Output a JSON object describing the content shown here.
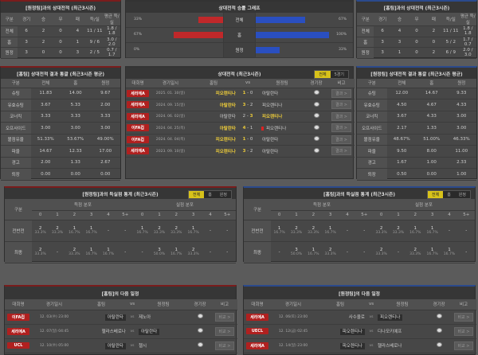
{
  "h2h_home": {
    "title": "[원정팀]과의 상대전적 (최근3시즌)",
    "cols": [
      "구분",
      "경기",
      "승",
      "무",
      "패",
      "득/실",
      "평균 득/실"
    ],
    "rows": [
      [
        "전체",
        "6",
        "2",
        "0",
        "4",
        "11 / 11",
        "1.8 / 1.8"
      ],
      [
        "홈",
        "3",
        "2",
        "0",
        "1",
        "9 / 6",
        "3.0 / 2.0"
      ],
      [
        "원정",
        "3",
        "0",
        "0",
        "3",
        "2 / 5",
        "0.7 / 1.7"
      ]
    ]
  },
  "h2h_away": {
    "title": "[홈팀]과의 상대전적 (최근3시즌)",
    "cols": [
      "구분",
      "경기",
      "승",
      "무",
      "패",
      "득/실",
      "평균 득/실"
    ],
    "rows": [
      [
        "전체",
        "6",
        "4",
        "0",
        "2",
        "11 / 11",
        "1.8 / 1.8"
      ],
      [
        "홈",
        "3",
        "3",
        "0",
        "0",
        "5 / 2",
        "1.7 / 0.7"
      ],
      [
        "원정",
        "3",
        "1",
        "0",
        "2",
        "6 / 9",
        "2.0 / 3.0"
      ]
    ]
  },
  "graph": {
    "title": "상대전적 승률 그래프",
    "colors": {
      "home": "#c0282a",
      "away": "#2a4fc0"
    },
    "rows": [
      {
        "label": "전체",
        "home": "33%",
        "home_val": 33,
        "away": "67%",
        "away_val": 67
      },
      {
        "label": "홈",
        "home": "67%",
        "home_val": 67,
        "away": "100%",
        "away_val": 100
      },
      {
        "label": "원정",
        "home": "0%",
        "home_val": 0,
        "away": "33%",
        "away_val": 33
      }
    ]
  },
  "avg_home": {
    "title": "[홈팀] 상대전적 결과 통괄 (최근3시즌 평균)",
    "cols": [
      "구분",
      "전체",
      "홈",
      "원정"
    ],
    "rows": [
      [
        "슈팅",
        "11.83",
        "14.00",
        "9.67"
      ],
      [
        "유효슈팅",
        "3.67",
        "5.33",
        "2.00"
      ],
      [
        "코너킥",
        "3.33",
        "3.33",
        "3.33"
      ],
      [
        "오프사이드",
        "3.00",
        "3.00",
        "3.00"
      ],
      [
        "볼점유율",
        "51.33%",
        "53.67%",
        "49.00%"
      ],
      [
        "파울",
        "14.67",
        "12.33",
        "17.00"
      ],
      [
        "경고",
        "2.00",
        "1.33",
        "2.67"
      ],
      [
        "퇴장",
        "0.00",
        "0.00",
        "0.00"
      ]
    ]
  },
  "avg_away": {
    "title": "[원정팀] 상대전적 결과 통괄 (최근3시즌 평균)",
    "cols": [
      "구분",
      "전체",
      "홈",
      "원정"
    ],
    "rows": [
      [
        "슈팅",
        "12.00",
        "14.67",
        "9.33"
      ],
      [
        "유효슈팅",
        "4.50",
        "4.67",
        "4.33"
      ],
      [
        "코너킥",
        "3.67",
        "4.33",
        "3.00"
      ],
      [
        "오프사이드",
        "2.17",
        "1.33",
        "3.00"
      ],
      [
        "볼점유율",
        "48.67%",
        "51.00%",
        "46.33%"
      ],
      [
        "파울",
        "9.50",
        "8.00",
        "11.00"
      ],
      [
        "경고",
        "1.67",
        "1.00",
        "2.33"
      ],
      [
        "퇴장",
        "0.50",
        "0.00",
        "1.00"
      ]
    ]
  },
  "matches": {
    "title": "상대전적 (최근3시즌)",
    "tabs": [
      "전체",
      "5경기"
    ],
    "cols": [
      "대회명",
      "경기일시",
      "홈팀",
      "vs",
      "원정팀",
      "경기장",
      "비고"
    ],
    "rows": [
      {
        "league": "세리에A",
        "date": "2025. 01. 30(일)",
        "home": "피오렌티나",
        "hs": "1",
        "as": "0",
        "away": "아탈란타",
        "winner": "home",
        "red": false,
        "btn": "결과 >"
      },
      {
        "league": "세리에A",
        "date": "2024. 09. 15(일)",
        "home": "아탈란타",
        "hs": "3",
        "as": "2",
        "away": "피오렌티나",
        "winner": "home",
        "red": false,
        "btn": "결과 >"
      },
      {
        "league": "세리에A",
        "date": "2024. 06. 02(일)",
        "home": "아탈란타",
        "hs": "2",
        "as": "3",
        "away": "피오렌티나",
        "winner": "away",
        "red": false,
        "btn": "결과 >"
      },
      {
        "league": "이FA컵",
        "date": "2024. 04. 25(목)",
        "home": "아탈란타",
        "hs": "4",
        "as": "1",
        "away": "피오렌티나",
        "winner": "home",
        "red": true,
        "btn": "결과 >"
      },
      {
        "league": "이FA컵",
        "date": "2024. 04. 04(목)",
        "home": "피오렌티나",
        "hs": "1",
        "as": "0",
        "away": "아탈란타",
        "winner": "home",
        "red": false,
        "btn": "결과 >"
      },
      {
        "league": "세리에A",
        "date": "2023. 09. 10(일)",
        "home": "피오렌티나",
        "hs": "3",
        "as": "2",
        "away": "아탈란타",
        "winner": "home",
        "red": false,
        "btn": "결과 >"
      }
    ]
  },
  "goals_home": {
    "title": "[원정팀]과의 득실점 통계 (최근3시즌)",
    "tabs": [
      "전체",
      "홈",
      "원정"
    ],
    "label_col": "구분",
    "scored": "득점 분포",
    "conceded": "실점 분포",
    "buckets": [
      "0",
      "1",
      "2",
      "3",
      "4",
      "5+"
    ],
    "rows": [
      {
        "label": "전반전",
        "cells": [
          [
            "2",
            "33.3%"
          ],
          [
            "2",
            "33.3%"
          ],
          [
            "1",
            "16.7%"
          ],
          [
            "1",
            "16.7%"
          ],
          [
            "-",
            ""
          ],
          [
            "-",
            ""
          ],
          [
            "1",
            "16.7%"
          ],
          [
            "2",
            "33.3%"
          ],
          [
            "2",
            "33.3%"
          ],
          [
            "1",
            "16.7%"
          ],
          [
            "-",
            ""
          ],
          [
            "-",
            ""
          ]
        ]
      },
      {
        "label": "최종",
        "cells": [
          [
            "2",
            "33.3%"
          ],
          [
            "-",
            ""
          ],
          [
            "2",
            "33.3%"
          ],
          [
            "1",
            "16.7%"
          ],
          [
            "1",
            "16.7%"
          ],
          [
            "-",
            ""
          ],
          [
            "-",
            ""
          ],
          [
            "3",
            "50.0%"
          ],
          [
            "1",
            "16.7%"
          ],
          [
            "2",
            "33.3%"
          ],
          [
            "-",
            ""
          ],
          [
            "-",
            ""
          ]
        ]
      }
    ]
  },
  "goals_away": {
    "title": "[홈팀]과의 득실점 통계 (최근3시즌)",
    "tabs": [
      "전체",
      "홈",
      "원정"
    ],
    "label_col": "구분",
    "scored": "득점 분포",
    "conceded": "실점 분포",
    "buckets": [
      "0",
      "1",
      "2",
      "3",
      "4",
      "5+"
    ],
    "rows": [
      {
        "label": "전반전",
        "cells": [
          [
            "1",
            "16.7%"
          ],
          [
            "2",
            "33.3%"
          ],
          [
            "2",
            "33.3%"
          ],
          [
            "1",
            "16.7%"
          ],
          [
            "-",
            ""
          ],
          [
            "-",
            ""
          ],
          [
            "2",
            "33.3%"
          ],
          [
            "2",
            "33.3%"
          ],
          [
            "1",
            "16.7%"
          ],
          [
            "1",
            "16.7%"
          ],
          [
            "-",
            ""
          ],
          [
            "-",
            ""
          ]
        ]
      },
      {
        "label": "최종",
        "cells": [
          [
            "-",
            ""
          ],
          [
            "3",
            "50.0%"
          ],
          [
            "1",
            "16.7%"
          ],
          [
            "2",
            "33.3%"
          ],
          [
            "-",
            ""
          ],
          [
            "-",
            ""
          ],
          [
            "2",
            "33.3%"
          ],
          [
            "-",
            ""
          ],
          [
            "2",
            "33.3%"
          ],
          [
            "1",
            "16.7%"
          ],
          [
            "1",
            "16.7%"
          ],
          [
            "-",
            ""
          ]
        ]
      }
    ]
  },
  "next_home": {
    "title": "[홈팀]의 다음 일정",
    "cols": [
      "대회명",
      "경기일시",
      "홈팀",
      "vs",
      "원정팀",
      "경기장",
      "비고"
    ],
    "rows": [
      {
        "league": "이FA컵",
        "date": "12. 03(수) 23:00",
        "home": "아탈란타",
        "vs": "vs",
        "away": "제노아",
        "focus": "home",
        "btn": "비교 >"
      },
      {
        "league": "세리에A",
        "date": "12. 07(일) 04:45",
        "home": "헬라스베로나",
        "vs": "vs",
        "away": "아탈란타",
        "focus": "away",
        "btn": "비교 >"
      },
      {
        "league": "UCL",
        "date": "12. 10(수) 05:00",
        "home": "아탈란타",
        "vs": "vs",
        "away": "첼시",
        "focus": "home",
        "btn": "비교 >"
      }
    ]
  },
  "next_away": {
    "title": "[원정팀]의 다음 일정",
    "cols": [
      "대회명",
      "경기일시",
      "홈팀",
      "vs",
      "원정팀",
      "경기장",
      "비고"
    ],
    "rows": [
      {
        "league": "세리에A",
        "date": "12. 06(토) 23:00",
        "home": "사수올로",
        "vs": "vs",
        "away": "피오렌티나",
        "focus": "away",
        "btn": "비교 >"
      },
      {
        "league": "UECL",
        "date": "12. 12(금) 02:45",
        "home": "피오렌티나",
        "vs": "vs",
        "away": "디나모키예프",
        "focus": "home",
        "btn": "비교 >"
      },
      {
        "league": "세리에A",
        "date": "12. 14(일) 23:00",
        "home": "피오렌티나",
        "vs": "vs",
        "away": "헬라스베로나",
        "focus": "home",
        "btn": "비교 >"
      }
    ]
  }
}
